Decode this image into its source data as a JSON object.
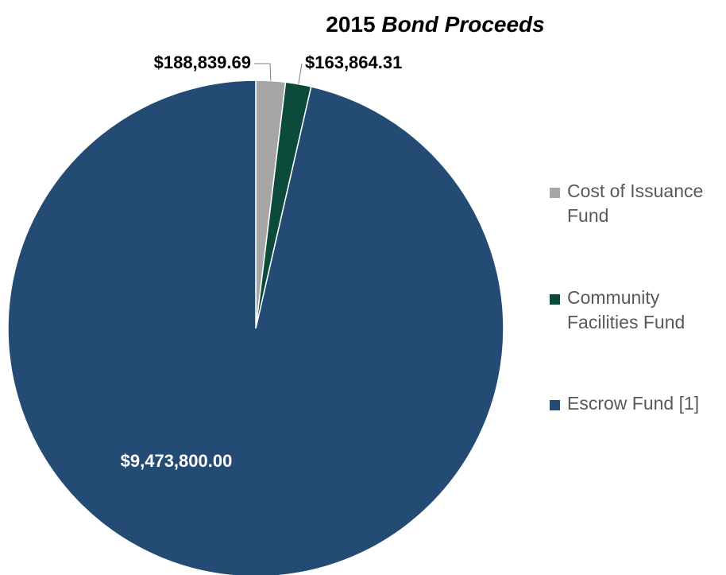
{
  "chart_data": {
    "type": "pie",
    "title": {
      "prefix": "2015 ",
      "emphasis": "Bond Proceeds"
    },
    "series": [
      {
        "categories": [
          "Cost of Issuance Fund",
          "Community Facilities Fund",
          "Escrow Fund [1]"
        ],
        "values": [
          188839.69,
          163864.31,
          9473800.0
        ],
        "data_labels": [
          "$188,839.69",
          "$163,864.31",
          "$9,473,800.00"
        ],
        "colors": [
          "#a6a6a6",
          "#0c4a3c",
          "#234b73"
        ]
      }
    ],
    "legend": {
      "position": "right",
      "entries": [
        {
          "lines": [
            "Cost of Issuance",
            "Fund"
          ],
          "color": "#a6a6a6"
        },
        {
          "lines": [
            "Community",
            "Facilities Fund"
          ],
          "color": "#0c4a3c"
        },
        {
          "lines": [
            "Escrow Fund [1]"
          ],
          "color": "#234b73"
        }
      ]
    },
    "label_colors": [
      "#000000",
      "#000000",
      "#ffffff"
    ],
    "leader_line_color": "#7f7f7f"
  }
}
